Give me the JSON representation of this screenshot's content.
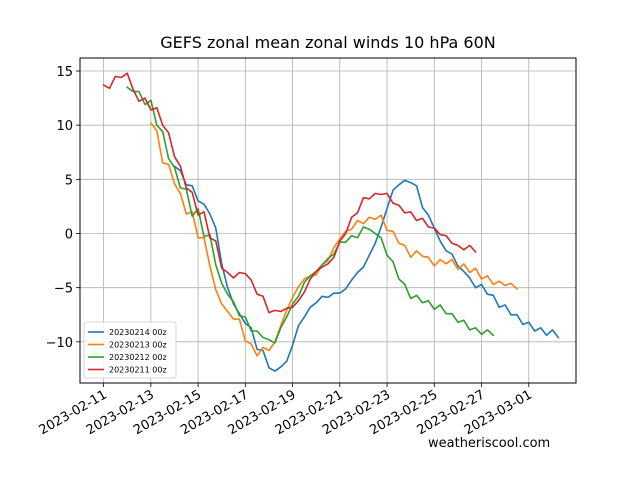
{
  "chart_data": {
    "type": "line",
    "title": "GEFS zonal mean zonal winds 10 hPa 60N",
    "xlabel": "",
    "ylabel": "",
    "x_axis_kind": "date",
    "xlim": [
      "2023-02-10",
      "2023-03-03"
    ],
    "ylim": [
      -13.8,
      16.2
    ],
    "x_ticks": [
      "2023-02-11",
      "2023-02-13",
      "2023-02-15",
      "2023-02-17",
      "2023-02-19",
      "2023-02-21",
      "2023-02-23",
      "2023-02-25",
      "2023-02-27",
      "2023-03-01"
    ],
    "y_ticks": [
      -10,
      -5,
      0,
      5,
      10,
      15
    ],
    "grid": true,
    "legend_position": "lower-left",
    "credit": "weatheriscool.com",
    "colors": {
      "series_1": "#1f77b4",
      "series_2": "#ff7f0e",
      "series_3": "#2ca02c",
      "series_4": "#d62728",
      "grid": "#b0b0b0"
    },
    "series": [
      {
        "name": "20230214 00z",
        "color": "#1f77b4",
        "points": [
          [
            "2023-02-14 00",
            6.2
          ],
          [
            "2023-02-14 06",
            5.8
          ],
          [
            "2023-02-14 12",
            4.5
          ],
          [
            "2023-02-14 18",
            4.4
          ],
          [
            "2023-02-15 00",
            3.0
          ],
          [
            "2023-02-15 06",
            2.7
          ],
          [
            "2023-02-15 12",
            1.8
          ],
          [
            "2023-02-15 18",
            0.5
          ],
          [
            "2023-02-16 00",
            -2.8
          ],
          [
            "2023-02-16 06",
            -5.0
          ],
          [
            "2023-02-16 12",
            -6.5
          ],
          [
            "2023-02-16 18",
            -7.4
          ],
          [
            "2023-02-17 00",
            -8.3
          ],
          [
            "2023-02-17 06",
            -8.7
          ],
          [
            "2023-02-17 12",
            -10.7
          ],
          [
            "2023-02-17 18",
            -10.8
          ],
          [
            "2023-02-18 00",
            -12.4
          ],
          [
            "2023-02-18 06",
            -12.7
          ],
          [
            "2023-02-18 12",
            -12.3
          ],
          [
            "2023-02-18 18",
            -11.8
          ],
          [
            "2023-02-19 00",
            -10.3
          ],
          [
            "2023-02-19 06",
            -8.5
          ],
          [
            "2023-02-19 12",
            -7.7
          ],
          [
            "2023-02-19 18",
            -6.8
          ],
          [
            "2023-02-20 00",
            -6.4
          ],
          [
            "2023-02-20 06",
            -5.8
          ],
          [
            "2023-02-20 12",
            -5.9
          ],
          [
            "2023-02-20 18",
            -5.5
          ],
          [
            "2023-02-21 00",
            -5.5
          ],
          [
            "2023-02-21 06",
            -5.1
          ],
          [
            "2023-02-21 12",
            -4.3
          ],
          [
            "2023-02-21 18",
            -3.6
          ],
          [
            "2023-02-22 00",
            -3.1
          ],
          [
            "2023-02-22 06",
            -2.0
          ],
          [
            "2023-02-22 12",
            -0.9
          ],
          [
            "2023-02-22 18",
            0.6
          ],
          [
            "2023-02-23 00",
            2.3
          ],
          [
            "2023-02-23 06",
            4.0
          ],
          [
            "2023-02-23 12",
            4.5
          ],
          [
            "2023-02-23 18",
            4.9
          ],
          [
            "2023-02-24 00",
            4.7
          ],
          [
            "2023-02-24 06",
            4.4
          ],
          [
            "2023-02-24 12",
            2.4
          ],
          [
            "2023-02-24 18",
            1.7
          ],
          [
            "2023-02-25 00",
            0.5
          ],
          [
            "2023-02-25 06",
            -0.7
          ],
          [
            "2023-02-25 12",
            -1.6
          ],
          [
            "2023-02-25 18",
            -1.9
          ],
          [
            "2023-02-26 00",
            -3.0
          ],
          [
            "2023-02-26 06",
            -3.5
          ],
          [
            "2023-02-26 12",
            -4.1
          ],
          [
            "2023-02-26 18",
            -5.0
          ],
          [
            "2023-02-27 00",
            -4.7
          ],
          [
            "2023-02-27 06",
            -5.6
          ],
          [
            "2023-02-27 12",
            -5.7
          ],
          [
            "2023-02-27 18",
            -6.8
          ],
          [
            "2023-02-28 00",
            -6.6
          ],
          [
            "2023-02-28 06",
            -7.5
          ],
          [
            "2023-02-28 12",
            -7.5
          ],
          [
            "2023-02-28 18",
            -8.4
          ],
          [
            "2023-03-01 00",
            -8.2
          ],
          [
            "2023-03-01 06",
            -9.0
          ],
          [
            "2023-03-01 12",
            -8.7
          ],
          [
            "2023-03-01 18",
            -9.4
          ],
          [
            "2023-03-02 00",
            -8.9
          ],
          [
            "2023-03-02 06",
            -9.6
          ]
        ]
      },
      {
        "name": "20230213 00z",
        "color": "#ff7f0e",
        "points": [
          [
            "2023-02-13 00",
            10.2
          ],
          [
            "2023-02-13 06",
            9.5
          ],
          [
            "2023-02-13 12",
            6.5
          ],
          [
            "2023-02-13 18",
            6.4
          ],
          [
            "2023-02-14 00",
            4.6
          ],
          [
            "2023-02-14 06",
            3.7
          ],
          [
            "2023-02-14 12",
            1.8
          ],
          [
            "2023-02-14 18",
            2.0
          ],
          [
            "2023-02-15 00",
            -0.4
          ],
          [
            "2023-02-15 06",
            -0.4
          ],
          [
            "2023-02-15 12",
            -3.0
          ],
          [
            "2023-02-15 18",
            -5.2
          ],
          [
            "2023-02-16 00",
            -6.5
          ],
          [
            "2023-02-16 06",
            -7.2
          ],
          [
            "2023-02-16 12",
            -7.9
          ],
          [
            "2023-02-16 18",
            -7.9
          ],
          [
            "2023-02-17 00",
            -9.9
          ],
          [
            "2023-02-17 06",
            -10.2
          ],
          [
            "2023-02-17 12",
            -11.3
          ],
          [
            "2023-02-17 18",
            -10.5
          ],
          [
            "2023-02-18 00",
            -10.8
          ],
          [
            "2023-02-18 06",
            -10.0
          ],
          [
            "2023-02-18 12",
            -8.5
          ],
          [
            "2023-02-18 18",
            -7.1
          ],
          [
            "2023-02-19 00",
            -5.9
          ],
          [
            "2023-02-19 06",
            -4.9
          ],
          [
            "2023-02-19 12",
            -4.2
          ],
          [
            "2023-02-19 18",
            -3.9
          ],
          [
            "2023-02-20 00",
            -3.8
          ],
          [
            "2023-02-20 06",
            -2.9
          ],
          [
            "2023-02-20 12",
            -2.5
          ],
          [
            "2023-02-20 18",
            -1.3
          ],
          [
            "2023-02-21 00",
            -0.5
          ],
          [
            "2023-02-21 06",
            0.2
          ],
          [
            "2023-02-21 12",
            0.4
          ],
          [
            "2023-02-21 18",
            1.2
          ],
          [
            "2023-02-22 00",
            0.9
          ],
          [
            "2023-02-22 06",
            1.5
          ],
          [
            "2023-02-22 12",
            1.3
          ],
          [
            "2023-02-22 18",
            1.7
          ],
          [
            "2023-02-23 00",
            0.3
          ],
          [
            "2023-02-23 06",
            0.2
          ],
          [
            "2023-02-23 12",
            -0.9
          ],
          [
            "2023-02-23 18",
            -1.1
          ],
          [
            "2023-02-24 00",
            -2.2
          ],
          [
            "2023-02-24 06",
            -1.6
          ],
          [
            "2023-02-24 12",
            -2.1
          ],
          [
            "2023-02-24 18",
            -2.2
          ],
          [
            "2023-02-25 00",
            -3.0
          ],
          [
            "2023-02-25 06",
            -2.4
          ],
          [
            "2023-02-25 12",
            -2.8
          ],
          [
            "2023-02-25 18",
            -2.4
          ],
          [
            "2023-02-26 00",
            -3.3
          ],
          [
            "2023-02-26 06",
            -2.8
          ],
          [
            "2023-02-26 12",
            -3.6
          ],
          [
            "2023-02-26 18",
            -3.2
          ],
          [
            "2023-02-27 00",
            -4.2
          ],
          [
            "2023-02-27 06",
            -3.9
          ],
          [
            "2023-02-27 12",
            -4.7
          ],
          [
            "2023-02-27 18",
            -4.4
          ],
          [
            "2023-02-28 00",
            -4.8
          ],
          [
            "2023-02-28 06",
            -4.6
          ],
          [
            "2023-02-28 12",
            -5.1
          ]
        ]
      },
      {
        "name": "20230212 00z",
        "color": "#2ca02c",
        "points": [
          [
            "2023-02-12 00",
            13.5
          ],
          [
            "2023-02-12 06",
            13.1
          ],
          [
            "2023-02-12 12",
            13.1
          ],
          [
            "2023-02-12 18",
            11.9
          ],
          [
            "2023-02-13 00",
            12.3
          ],
          [
            "2023-02-13 06",
            10.0
          ],
          [
            "2023-02-13 12",
            9.4
          ],
          [
            "2023-02-13 18",
            6.9
          ],
          [
            "2023-02-14 00",
            6.1
          ],
          [
            "2023-02-14 06",
            4.2
          ],
          [
            "2023-02-14 12",
            4.1
          ],
          [
            "2023-02-14 18",
            1.6
          ],
          [
            "2023-02-15 00",
            2.3
          ],
          [
            "2023-02-15 06",
            -0.3
          ],
          [
            "2023-02-15 12",
            -0.1
          ],
          [
            "2023-02-15 18",
            -2.9
          ],
          [
            "2023-02-16 00",
            -4.6
          ],
          [
            "2023-02-16 06",
            -5.6
          ],
          [
            "2023-02-16 12",
            -6.3
          ],
          [
            "2023-02-16 18",
            -7.6
          ],
          [
            "2023-02-17 00",
            -7.7
          ],
          [
            "2023-02-17 06",
            -9.0
          ],
          [
            "2023-02-17 12",
            -9.0
          ],
          [
            "2023-02-17 18",
            -9.6
          ],
          [
            "2023-02-18 00",
            -9.8
          ],
          [
            "2023-02-18 06",
            -10.1
          ],
          [
            "2023-02-18 12",
            -8.7
          ],
          [
            "2023-02-18 18",
            -7.7
          ],
          [
            "2023-02-19 00",
            -6.5
          ],
          [
            "2023-02-19 06",
            -5.8
          ],
          [
            "2023-02-19 12",
            -4.5
          ],
          [
            "2023-02-19 18",
            -3.9
          ],
          [
            "2023-02-20 00",
            -3.5
          ],
          [
            "2023-02-20 06",
            -2.9
          ],
          [
            "2023-02-20 12",
            -2.3
          ],
          [
            "2023-02-20 18",
            -1.9
          ],
          [
            "2023-02-21 00",
            -0.8
          ],
          [
            "2023-02-21 06",
            -0.8
          ],
          [
            "2023-02-21 12",
            -0.2
          ],
          [
            "2023-02-21 18",
            -0.4
          ],
          [
            "2023-02-22 00",
            0.6
          ],
          [
            "2023-02-22 06",
            0.4
          ],
          [
            "2023-02-22 12",
            0.0
          ],
          [
            "2023-02-22 18",
            -0.4
          ],
          [
            "2023-02-23 00",
            -2.0
          ],
          [
            "2023-02-23 06",
            -2.6
          ],
          [
            "2023-02-23 12",
            -4.2
          ],
          [
            "2023-02-23 18",
            -4.7
          ],
          [
            "2023-02-24 00",
            -6.0
          ],
          [
            "2023-02-24 06",
            -5.7
          ],
          [
            "2023-02-24 12",
            -6.4
          ],
          [
            "2023-02-24 18",
            -6.2
          ],
          [
            "2023-02-25 00",
            -7.0
          ],
          [
            "2023-02-25 06",
            -6.6
          ],
          [
            "2023-02-25 12",
            -7.4
          ],
          [
            "2023-02-25 18",
            -7.4
          ],
          [
            "2023-02-26 00",
            -8.2
          ],
          [
            "2023-02-26 06",
            -8.0
          ],
          [
            "2023-02-26 12",
            -8.9
          ],
          [
            "2023-02-26 18",
            -8.7
          ],
          [
            "2023-02-27 00",
            -9.3
          ],
          [
            "2023-02-27 06",
            -8.9
          ],
          [
            "2023-02-27 12",
            -9.4
          ]
        ]
      },
      {
        "name": "20230211 00z",
        "color": "#d62728",
        "points": [
          [
            "2023-02-11 00",
            13.7
          ],
          [
            "2023-02-11 06",
            13.4
          ],
          [
            "2023-02-11 12",
            14.5
          ],
          [
            "2023-02-11 18",
            14.4
          ],
          [
            "2023-02-12 00",
            14.8
          ],
          [
            "2023-02-12 06",
            13.3
          ],
          [
            "2023-02-12 12",
            12.2
          ],
          [
            "2023-02-12 18",
            12.5
          ],
          [
            "2023-02-13 00",
            11.4
          ],
          [
            "2023-02-13 06",
            11.6
          ],
          [
            "2023-02-13 12",
            10.0
          ],
          [
            "2023-02-13 18",
            9.3
          ],
          [
            "2023-02-14 00",
            7.1
          ],
          [
            "2023-02-14 06",
            6.2
          ],
          [
            "2023-02-14 12",
            4.2
          ],
          [
            "2023-02-14 18",
            3.8
          ],
          [
            "2023-02-15 00",
            1.7
          ],
          [
            "2023-02-15 06",
            2.0
          ],
          [
            "2023-02-15 12",
            -0.4
          ],
          [
            "2023-02-15 18",
            -0.7
          ],
          [
            "2023-02-16 00",
            -3.2
          ],
          [
            "2023-02-16 06",
            -3.6
          ],
          [
            "2023-02-16 12",
            -4.1
          ],
          [
            "2023-02-16 18",
            -3.6
          ],
          [
            "2023-02-17 00",
            -3.7
          ],
          [
            "2023-02-17 06",
            -4.3
          ],
          [
            "2023-02-17 12",
            -5.6
          ],
          [
            "2023-02-17 18",
            -5.8
          ],
          [
            "2023-02-18 00",
            -7.3
          ],
          [
            "2023-02-18 06",
            -7.1
          ],
          [
            "2023-02-18 12",
            -7.2
          ],
          [
            "2023-02-18 18",
            -6.9
          ],
          [
            "2023-02-19 00",
            -6.8
          ],
          [
            "2023-02-19 06",
            -6.2
          ],
          [
            "2023-02-19 12",
            -5.4
          ],
          [
            "2023-02-19 18",
            -4.2
          ],
          [
            "2023-02-20 00",
            -3.5
          ],
          [
            "2023-02-20 06",
            -3.1
          ],
          [
            "2023-02-20 12",
            -2.8
          ],
          [
            "2023-02-20 18",
            -2.2
          ],
          [
            "2023-02-21 00",
            -0.7
          ],
          [
            "2023-02-21 06",
            0.0
          ],
          [
            "2023-02-21 12",
            1.5
          ],
          [
            "2023-02-21 18",
            1.9
          ],
          [
            "2023-02-22 00",
            3.3
          ],
          [
            "2023-02-22 06",
            3.2
          ],
          [
            "2023-02-22 12",
            3.7
          ],
          [
            "2023-02-22 18",
            3.6
          ],
          [
            "2023-02-23 00",
            3.7
          ],
          [
            "2023-02-23 06",
            2.8
          ],
          [
            "2023-02-23 12",
            2.6
          ],
          [
            "2023-02-23 18",
            1.9
          ],
          [
            "2023-02-24 00",
            2.0
          ],
          [
            "2023-02-24 06",
            1.2
          ],
          [
            "2023-02-24 12",
            1.4
          ],
          [
            "2023-02-24 18",
            0.6
          ],
          [
            "2023-02-25 00",
            0.5
          ],
          [
            "2023-02-25 06",
            -0.1
          ],
          [
            "2023-02-25 12",
            -0.2
          ],
          [
            "2023-02-25 18",
            -0.9
          ],
          [
            "2023-02-26 00",
            -1.1
          ],
          [
            "2023-02-26 06",
            -1.5
          ],
          [
            "2023-02-26 12",
            -1.1
          ],
          [
            "2023-02-26 18",
            -1.7
          ]
        ]
      }
    ]
  }
}
